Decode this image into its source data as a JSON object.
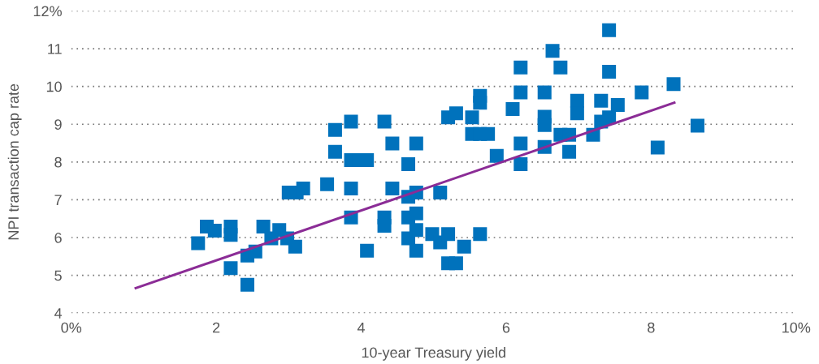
{
  "chart_data": {
    "type": "scatter",
    "xlabel": "10-year Treasury yield",
    "ylabel": "NPI transaction cap rate",
    "xlim": [
      0,
      10
    ],
    "ylim": [
      4,
      12
    ],
    "xticks": [
      {
        "value": 0,
        "label": "0%"
      },
      2,
      4,
      6,
      8,
      {
        "value": 10,
        "label": "10%"
      }
    ],
    "yticks": [
      4,
      5,
      6,
      7,
      8,
      9,
      10,
      11,
      {
        "value": 12,
        "label": "12%"
      }
    ],
    "grid": "y",
    "marker": "square",
    "series": [
      {
        "color": "#0072bc",
        "x": [
          1.75,
          1.87,
          1.98,
          2.2,
          2.2,
          2.2,
          2.43,
          2.43,
          2.54,
          2.65,
          2.87,
          2.76,
          2.98,
          3.09,
          3.0,
          3.11,
          3.2,
          3.53,
          3.64,
          3.64,
          3.86,
          3.86,
          3.97,
          4.08,
          3.86,
          3.86,
          4.08,
          4.32,
          4.32,
          4.32,
          4.43,
          4.43,
          4.65,
          4.65,
          4.65,
          4.65,
          4.76,
          4.76,
          4.76,
          4.76,
          4.76,
          4.98,
          5.09,
          5.09,
          5.2,
          5.2,
          5.2,
          5.31,
          5.31,
          5.42,
          5.53,
          5.53,
          5.64,
          5.75,
          5.64,
          5.64,
          5.64,
          5.87,
          6.09,
          6.2,
          6.2,
          6.2,
          6.2,
          6.53,
          6.53,
          6.53,
          6.53,
          6.64,
          6.75,
          6.75,
          6.87,
          6.87,
          6.98,
          6.98,
          7.2,
          7.31,
          7.31,
          7.42,
          7.42,
          7.42,
          7.54,
          7.87,
          8.09,
          8.31,
          8.64
        ],
        "values": [
          5.85,
          6.29,
          6.18,
          6.29,
          6.07,
          5.19,
          5.52,
          4.75,
          5.63,
          6.29,
          6.2,
          5.98,
          5.98,
          5.76,
          7.19,
          7.19,
          7.3,
          7.41,
          8.85,
          8.27,
          9.07,
          8.05,
          8.05,
          8.05,
          7.3,
          6.53,
          5.65,
          9.07,
          6.53,
          6.31,
          8.49,
          7.3,
          7.94,
          7.08,
          6.53,
          5.98,
          8.49,
          7.19,
          6.64,
          6.2,
          5.65,
          6.09,
          7.19,
          5.87,
          9.18,
          6.09,
          5.32,
          5.32,
          9.29,
          5.76,
          9.18,
          8.74,
          8.74,
          8.74,
          9.75,
          9.57,
          6.09,
          8.16,
          9.4,
          10.5,
          9.84,
          8.49,
          7.94,
          9.84,
          9.2,
          8.98,
          8.4,
          10.94,
          10.5,
          8.72,
          8.72,
          8.27,
          9.62,
          9.29,
          8.72,
          9.62,
          9.07,
          11.49,
          10.39,
          9.18,
          9.51,
          9.84,
          8.38,
          10.06,
          8.96
        ]
      },
      {
        "type": "line",
        "color": "#8b2c96",
        "marker": "none",
        "x": [
          0.89,
          8.32
        ],
        "values": [
          4.66,
          9.57
        ]
      }
    ]
  }
}
